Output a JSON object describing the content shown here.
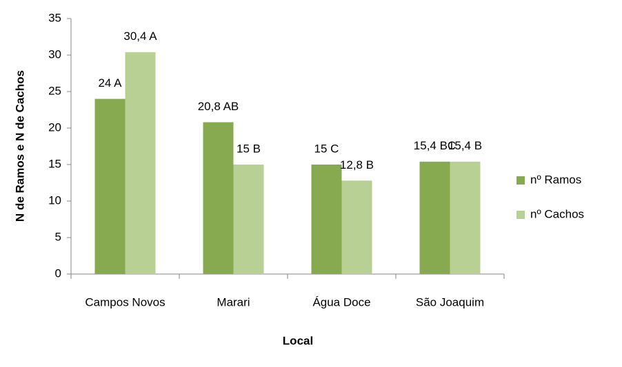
{
  "chart_data": {
    "type": "bar",
    "categories": [
      "Campos Novos",
      "Marari",
      "Água Doce",
      "São Joaquim"
    ],
    "series": [
      {
        "name": "nº Ramos",
        "color": "#87a94f",
        "values": [
          24,
          20.8,
          15,
          15.4
        ],
        "value_labels": [
          "24 A",
          "20,8 AB",
          "15 C",
          "15,4 BC"
        ]
      },
      {
        "name": "nº Cachos",
        "color": "#b8d093",
        "values": [
          30.4,
          15,
          12.8,
          15.4
        ],
        "value_labels": [
          "30,4 A",
          "15 B",
          "12,8 B",
          "15,4 B"
        ]
      }
    ],
    "x_label": "Local",
    "y_label": "N de Ramos e N de Cachos",
    "ylim": [
      0,
      35
    ],
    "yticks": [
      0,
      5,
      10,
      15,
      20,
      25,
      30,
      35
    ],
    "grid": false,
    "legend": "right"
  }
}
